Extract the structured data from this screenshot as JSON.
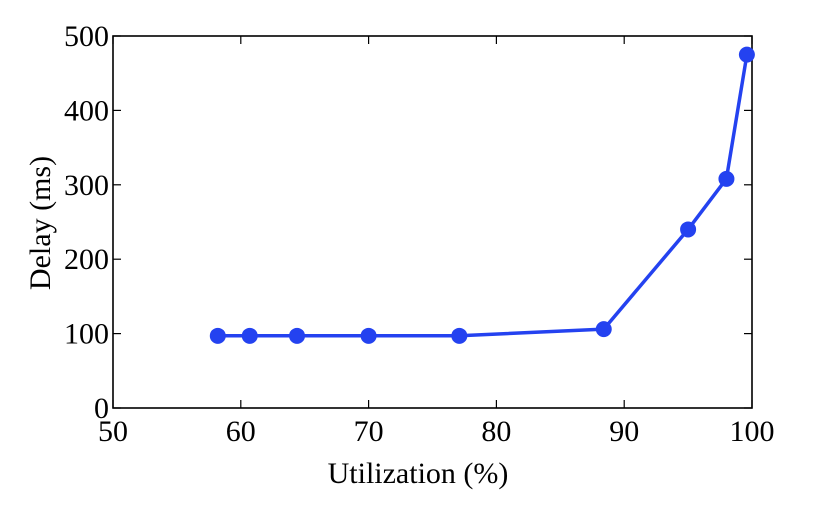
{
  "chart_data": {
    "type": "line",
    "xlabel": "Utilization (%)",
    "ylabel": "Delay (ms)",
    "xlim": [
      50,
      100
    ],
    "ylim": [
      0,
      500
    ],
    "xticks": [
      50,
      60,
      70,
      80,
      90,
      100
    ],
    "yticks": [
      0,
      100,
      200,
      300,
      400,
      500
    ],
    "xtick_labels": [
      "50",
      "60",
      "70",
      "80",
      "90",
      "100"
    ],
    "ytick_labels": [
      "0",
      "100",
      "200",
      "300",
      "400",
      "500"
    ],
    "grid": false,
    "legend": "none",
    "series": [
      {
        "color": "#2442f0",
        "marker": "circle",
        "x": [
          58.2,
          60.7,
          64.4,
          70.0,
          77.1,
          88.4,
          95.0,
          98.0,
          99.6
        ],
        "y": [
          97,
          97,
          97,
          97,
          97,
          106,
          240,
          308,
          475
        ]
      }
    ]
  }
}
